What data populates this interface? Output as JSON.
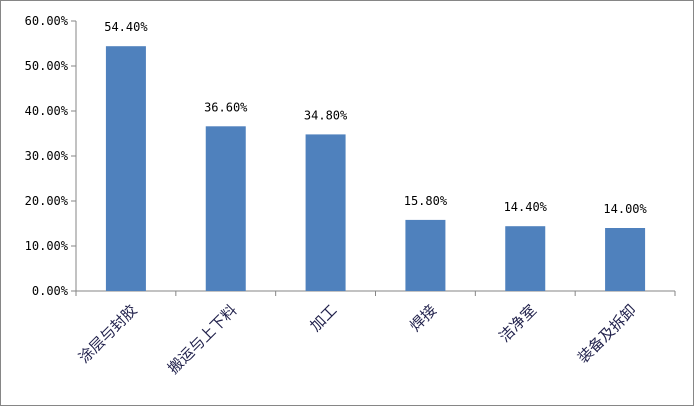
{
  "chart_data": {
    "type": "bar",
    "categories": [
      "涂层与封胶",
      "搬运与上下料",
      "加工",
      "焊接",
      "洁净室",
      "装备及拆卸"
    ],
    "values": [
      54.4,
      36.6,
      34.8,
      15.8,
      14.4,
      14.0
    ],
    "data_labels": [
      "54.40%",
      "36.60%",
      "34.80%",
      "15.80%",
      "14.40%",
      "14.00%"
    ],
    "yticks": [
      "0.00%",
      "10.00%",
      "20.00%",
      "30.00%",
      "40.00%",
      "50.00%",
      "60.00%"
    ],
    "ylim": [
      0,
      60
    ],
    "title": "",
    "xlabel": "",
    "ylabel": "",
    "grid": false,
    "legend": "none",
    "bar_color": "#4f81bd"
  }
}
